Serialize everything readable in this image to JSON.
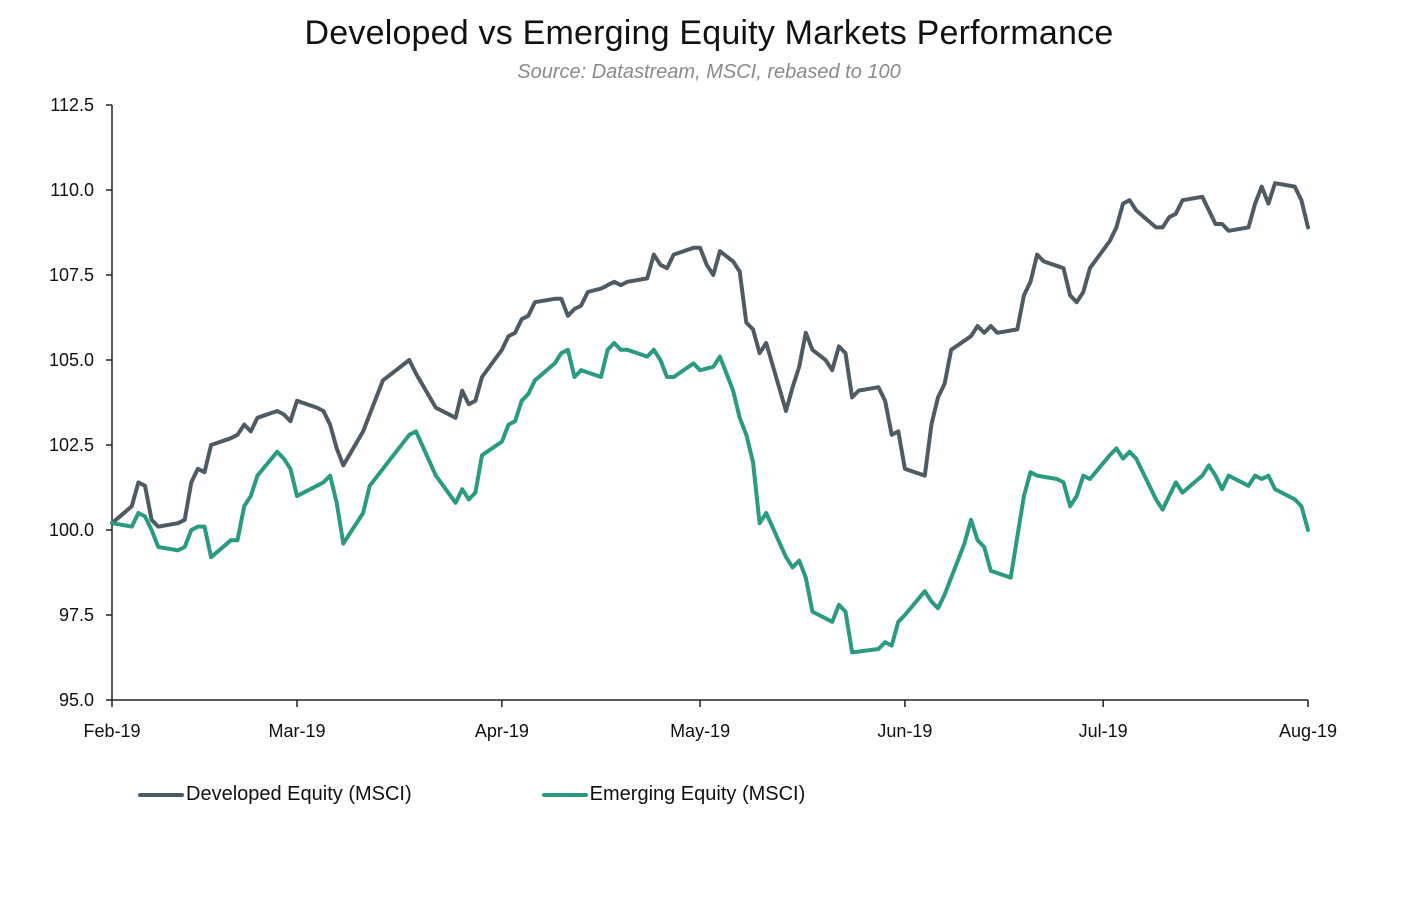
{
  "chart_data": {
    "type": "line",
    "title": "Developed vs Emerging Equity Markets Performance",
    "subtitle": "Source: Datastream, MSCI, rebased to 100",
    "xlabel": "",
    "ylabel": "",
    "ylim": [
      95.0,
      112.5
    ],
    "yticks": [
      "95.0",
      "97.5",
      "100.0",
      "102.5",
      "105.0",
      "107.5",
      "110.0",
      "112.5"
    ],
    "ytick_values": [
      95.0,
      97.5,
      100.0,
      102.5,
      105.0,
      107.5,
      110.0,
      112.5
    ],
    "xlim": [
      "2019-02-01",
      "2019-08-01"
    ],
    "xticks": [
      {
        "label": "Feb-19",
        "date": "2019-02-01"
      },
      {
        "label": "Mar-19",
        "date": "2019-03-01"
      },
      {
        "label": "Apr-19",
        "date": "2019-04-01"
      },
      {
        "label": "May-19",
        "date": "2019-05-01"
      },
      {
        "label": "Jun-19",
        "date": "2019-06-01"
      },
      {
        "label": "Jul-19",
        "date": "2019-07-01"
      },
      {
        "label": "Aug-19",
        "date": "2019-08-01"
      }
    ],
    "grid": false,
    "legend_position": "bottom-left",
    "series": [
      {
        "name": "Developed Equity (MSCI)",
        "color": "#4f5b63",
        "points": [
          [
            "2019-02-01",
            100.2
          ],
          [
            "2019-02-04",
            100.7
          ],
          [
            "2019-02-05",
            101.4
          ],
          [
            "2019-02-06",
            101.3
          ],
          [
            "2019-02-07",
            100.3
          ],
          [
            "2019-02-08",
            100.1
          ],
          [
            "2019-02-11",
            100.2
          ],
          [
            "2019-02-12",
            100.3
          ],
          [
            "2019-02-13",
            101.4
          ],
          [
            "2019-02-14",
            101.8
          ],
          [
            "2019-02-15",
            101.7
          ],
          [
            "2019-02-16",
            102.5
          ],
          [
            "2019-02-19",
            102.7
          ],
          [
            "2019-02-20",
            102.8
          ],
          [
            "2019-02-21",
            103.1
          ],
          [
            "2019-02-22",
            102.9
          ],
          [
            "2019-02-23",
            103.3
          ],
          [
            "2019-02-26",
            103.5
          ],
          [
            "2019-02-27",
            103.4
          ],
          [
            "2019-02-28",
            103.2
          ],
          [
            "2019-03-01",
            103.8
          ],
          [
            "2019-03-04",
            103.6
          ],
          [
            "2019-03-05",
            103.5
          ],
          [
            "2019-03-06",
            103.1
          ],
          [
            "2019-03-07",
            102.4
          ],
          [
            "2019-03-08",
            101.9
          ],
          [
            "2019-03-11",
            102.9
          ],
          [
            "2019-03-14",
            104.4
          ],
          [
            "2019-03-18",
            105.0
          ],
          [
            "2019-03-19",
            104.6
          ],
          [
            "2019-03-22",
            103.6
          ],
          [
            "2019-03-25",
            103.3
          ],
          [
            "2019-03-26",
            104.1
          ],
          [
            "2019-03-27",
            103.7
          ],
          [
            "2019-03-28",
            103.8
          ],
          [
            "2019-03-29",
            104.5
          ],
          [
            "2019-04-01",
            105.3
          ],
          [
            "2019-04-02",
            105.7
          ],
          [
            "2019-04-03",
            105.8
          ],
          [
            "2019-04-04",
            106.2
          ],
          [
            "2019-04-05",
            106.3
          ],
          [
            "2019-04-06",
            106.7
          ],
          [
            "2019-04-09",
            106.8
          ],
          [
            "2019-04-10",
            106.8
          ],
          [
            "2019-04-11",
            106.3
          ],
          [
            "2019-04-12",
            106.5
          ],
          [
            "2019-04-13",
            106.6
          ],
          [
            "2019-04-14",
            107.0
          ],
          [
            "2019-04-16",
            107.1
          ],
          [
            "2019-04-17",
            107.2
          ],
          [
            "2019-04-18",
            107.3
          ],
          [
            "2019-04-19",
            107.2
          ],
          [
            "2019-04-20",
            107.3
          ],
          [
            "2019-04-23",
            107.4
          ],
          [
            "2019-04-24",
            108.1
          ],
          [
            "2019-04-25",
            107.8
          ],
          [
            "2019-04-26",
            107.7
          ],
          [
            "2019-04-27",
            108.1
          ],
          [
            "2019-04-30",
            108.3
          ],
          [
            "2019-05-01",
            108.3
          ],
          [
            "2019-05-02",
            107.8
          ],
          [
            "2019-05-03",
            107.5
          ],
          [
            "2019-05-04",
            108.2
          ],
          [
            "2019-05-06",
            107.9
          ],
          [
            "2019-05-07",
            107.6
          ],
          [
            "2019-05-08",
            106.1
          ],
          [
            "2019-05-09",
            105.9
          ],
          [
            "2019-05-10",
            105.2
          ],
          [
            "2019-05-11",
            105.5
          ],
          [
            "2019-05-14",
            103.5
          ],
          [
            "2019-05-15",
            104.2
          ],
          [
            "2019-05-16",
            104.8
          ],
          [
            "2019-05-17",
            105.8
          ],
          [
            "2019-05-18",
            105.3
          ],
          [
            "2019-05-20",
            105.0
          ],
          [
            "2019-05-21",
            104.7
          ],
          [
            "2019-05-22",
            105.4
          ],
          [
            "2019-05-23",
            105.2
          ],
          [
            "2019-05-24",
            103.9
          ],
          [
            "2019-05-25",
            104.1
          ],
          [
            "2019-05-28",
            104.2
          ],
          [
            "2019-05-29",
            103.8
          ],
          [
            "2019-05-30",
            102.8
          ],
          [
            "2019-05-31",
            102.9
          ],
          [
            "2019-06-01",
            101.8
          ],
          [
            "2019-06-04",
            101.6
          ],
          [
            "2019-06-05",
            103.1
          ],
          [
            "2019-06-06",
            103.9
          ],
          [
            "2019-06-07",
            104.3
          ],
          [
            "2019-06-08",
            105.3
          ],
          [
            "2019-06-11",
            105.7
          ],
          [
            "2019-06-12",
            106.0
          ],
          [
            "2019-06-13",
            105.8
          ],
          [
            "2019-06-14",
            106.0
          ],
          [
            "2019-06-15",
            105.8
          ],
          [
            "2019-06-18",
            105.9
          ],
          [
            "2019-06-19",
            106.9
          ],
          [
            "2019-06-20",
            107.3
          ],
          [
            "2019-06-21",
            108.1
          ],
          [
            "2019-06-22",
            107.9
          ],
          [
            "2019-06-25",
            107.7
          ],
          [
            "2019-06-26",
            106.9
          ],
          [
            "2019-06-27",
            106.7
          ],
          [
            "2019-06-28",
            107.0
          ],
          [
            "2019-06-29",
            107.7
          ],
          [
            "2019-07-02",
            108.5
          ],
          [
            "2019-07-03",
            108.9
          ],
          [
            "2019-07-04",
            109.6
          ],
          [
            "2019-07-05",
            109.7
          ],
          [
            "2019-07-06",
            109.4
          ],
          [
            "2019-07-09",
            108.9
          ],
          [
            "2019-07-10",
            108.9
          ],
          [
            "2019-07-11",
            109.2
          ],
          [
            "2019-07-12",
            109.3
          ],
          [
            "2019-07-13",
            109.7
          ],
          [
            "2019-07-16",
            109.8
          ],
          [
            "2019-07-17",
            109.4
          ],
          [
            "2019-07-18",
            109.0
          ],
          [
            "2019-07-19",
            109.0
          ],
          [
            "2019-07-20",
            108.8
          ],
          [
            "2019-07-23",
            108.9
          ],
          [
            "2019-07-24",
            109.6
          ],
          [
            "2019-07-25",
            110.1
          ],
          [
            "2019-07-26",
            109.6
          ],
          [
            "2019-07-27",
            110.2
          ],
          [
            "2019-07-30",
            110.1
          ],
          [
            "2019-07-31",
            109.7
          ],
          [
            "2019-08-01",
            108.9
          ]
        ]
      },
      {
        "name": "Emerging Equity (MSCI)",
        "color": "#2a9a80",
        "points": [
          [
            "2019-02-01",
            100.2
          ],
          [
            "2019-02-04",
            100.1
          ],
          [
            "2019-02-05",
            100.5
          ],
          [
            "2019-02-06",
            100.4
          ],
          [
            "2019-02-07",
            100.0
          ],
          [
            "2019-02-08",
            99.5
          ],
          [
            "2019-02-11",
            99.4
          ],
          [
            "2019-02-12",
            99.5
          ],
          [
            "2019-02-13",
            100.0
          ],
          [
            "2019-02-14",
            100.1
          ],
          [
            "2019-02-15",
            100.1
          ],
          [
            "2019-02-16",
            99.2
          ],
          [
            "2019-02-19",
            99.7
          ],
          [
            "2019-02-20",
            99.7
          ],
          [
            "2019-02-21",
            100.7
          ],
          [
            "2019-02-22",
            101.0
          ],
          [
            "2019-02-23",
            101.6
          ],
          [
            "2019-02-26",
            102.3
          ],
          [
            "2019-02-27",
            102.1
          ],
          [
            "2019-02-28",
            101.8
          ],
          [
            "2019-03-01",
            101.0
          ],
          [
            "2019-03-04",
            101.3
          ],
          [
            "2019-03-05",
            101.4
          ],
          [
            "2019-03-06",
            101.6
          ],
          [
            "2019-03-07",
            100.8
          ],
          [
            "2019-03-08",
            99.6
          ],
          [
            "2019-03-11",
            100.5
          ],
          [
            "2019-03-12",
            101.3
          ],
          [
            "2019-03-14",
            101.8
          ],
          [
            "2019-03-18",
            102.8
          ],
          [
            "2019-03-19",
            102.9
          ],
          [
            "2019-03-22",
            101.6
          ],
          [
            "2019-03-25",
            100.8
          ],
          [
            "2019-03-26",
            101.2
          ],
          [
            "2019-03-27",
            100.9
          ],
          [
            "2019-03-28",
            101.1
          ],
          [
            "2019-03-29",
            102.2
          ],
          [
            "2019-04-01",
            102.6
          ],
          [
            "2019-04-02",
            103.1
          ],
          [
            "2019-04-03",
            103.2
          ],
          [
            "2019-04-04",
            103.8
          ],
          [
            "2019-04-05",
            104.0
          ],
          [
            "2019-04-06",
            104.4
          ],
          [
            "2019-04-09",
            104.9
          ],
          [
            "2019-04-10",
            105.2
          ],
          [
            "2019-04-11",
            105.3
          ],
          [
            "2019-04-12",
            104.5
          ],
          [
            "2019-04-13",
            104.7
          ],
          [
            "2019-04-16",
            104.5
          ],
          [
            "2019-04-17",
            105.3
          ],
          [
            "2019-04-18",
            105.5
          ],
          [
            "2019-04-19",
            105.3
          ],
          [
            "2019-04-20",
            105.3
          ],
          [
            "2019-04-23",
            105.1
          ],
          [
            "2019-04-24",
            105.3
          ],
          [
            "2019-04-25",
            105.0
          ],
          [
            "2019-04-26",
            104.5
          ],
          [
            "2019-04-27",
            104.5
          ],
          [
            "2019-04-30",
            104.9
          ],
          [
            "2019-05-01",
            104.7
          ],
          [
            "2019-05-03",
            104.8
          ],
          [
            "2019-05-04",
            105.1
          ],
          [
            "2019-05-06",
            104.1
          ],
          [
            "2019-05-07",
            103.3
          ],
          [
            "2019-05-08",
            102.8
          ],
          [
            "2019-05-09",
            102.0
          ],
          [
            "2019-05-10",
            100.2
          ],
          [
            "2019-05-11",
            100.5
          ],
          [
            "2019-05-14",
            99.2
          ],
          [
            "2019-05-15",
            98.9
          ],
          [
            "2019-05-16",
            99.1
          ],
          [
            "2019-05-17",
            98.6
          ],
          [
            "2019-05-18",
            97.6
          ],
          [
            "2019-05-21",
            97.3
          ],
          [
            "2019-05-22",
            97.8
          ],
          [
            "2019-05-23",
            97.6
          ],
          [
            "2019-05-24",
            96.4
          ],
          [
            "2019-05-28",
            96.5
          ],
          [
            "2019-05-29",
            96.7
          ],
          [
            "2019-05-30",
            96.6
          ],
          [
            "2019-05-31",
            97.3
          ],
          [
            "2019-06-01",
            97.5
          ],
          [
            "2019-06-04",
            98.2
          ],
          [
            "2019-06-05",
            97.9
          ],
          [
            "2019-06-06",
            97.7
          ],
          [
            "2019-06-07",
            98.1
          ],
          [
            "2019-06-10",
            99.6
          ],
          [
            "2019-06-11",
            100.3
          ],
          [
            "2019-06-12",
            99.7
          ],
          [
            "2019-06-13",
            99.5
          ],
          [
            "2019-06-14",
            98.8
          ],
          [
            "2019-06-17",
            98.6
          ],
          [
            "2019-06-18",
            99.8
          ],
          [
            "2019-06-19",
            101.0
          ],
          [
            "2019-06-20",
            101.7
          ],
          [
            "2019-06-21",
            101.6
          ],
          [
            "2019-06-24",
            101.5
          ],
          [
            "2019-06-25",
            101.4
          ],
          [
            "2019-06-26",
            100.7
          ],
          [
            "2019-06-27",
            101.0
          ],
          [
            "2019-06-28",
            101.6
          ],
          [
            "2019-06-29",
            101.5
          ],
          [
            "2019-07-02",
            102.2
          ],
          [
            "2019-07-03",
            102.4
          ],
          [
            "2019-07-04",
            102.1
          ],
          [
            "2019-07-05",
            102.3
          ],
          [
            "2019-07-06",
            102.1
          ],
          [
            "2019-07-09",
            100.9
          ],
          [
            "2019-07-10",
            100.6
          ],
          [
            "2019-07-11",
            101.0
          ],
          [
            "2019-07-12",
            101.4
          ],
          [
            "2019-07-13",
            101.1
          ],
          [
            "2019-07-16",
            101.6
          ],
          [
            "2019-07-17",
            101.9
          ],
          [
            "2019-07-18",
            101.6
          ],
          [
            "2019-07-19",
            101.2
          ],
          [
            "2019-07-20",
            101.6
          ],
          [
            "2019-07-23",
            101.3
          ],
          [
            "2019-07-24",
            101.6
          ],
          [
            "2019-07-25",
            101.5
          ],
          [
            "2019-07-26",
            101.6
          ],
          [
            "2019-07-27",
            101.2
          ],
          [
            "2019-07-30",
            100.9
          ],
          [
            "2019-07-31",
            100.7
          ],
          [
            "2019-08-01",
            100.0
          ]
        ]
      }
    ]
  }
}
